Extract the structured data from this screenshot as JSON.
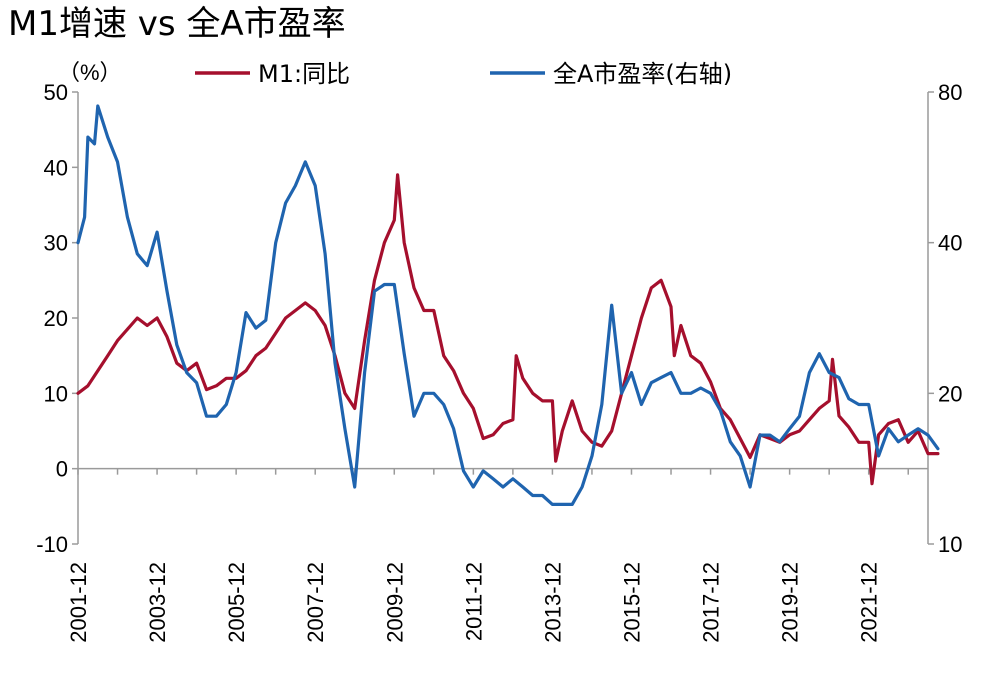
{
  "title": "M1增速 vs 全A市盈率",
  "chart_data": {
    "type": "line",
    "title": "M1增速 vs 全A市盈率",
    "ylabel_left": "（%）",
    "legend": [
      "M1:同比",
      "全A市盈率(右轴)"
    ],
    "legend_position": "top",
    "grid": false,
    "x_ticks": [
      "2001-12",
      "2003-12",
      "2005-12",
      "2007-12",
      "2009-12",
      "2011-12",
      "2013-12",
      "2015-12",
      "2017-12",
      "2019-12",
      "2021-12"
    ],
    "y_left_ticks": [
      "-10",
      "0",
      "10",
      "20",
      "30",
      "40",
      "50"
    ],
    "y_right_ticks": [
      "10",
      "20",
      "40",
      "80"
    ],
    "ylim_left": [
      -10,
      50
    ],
    "ylim_right": [
      10,
      80
    ],
    "y_right_scale": "log",
    "x_range": [
      "2001-12",
      "2023-06"
    ],
    "series": [
      {
        "name": "M1:同比",
        "axis": "left",
        "color": "#A50F2D",
        "points": [
          [
            "2001-12",
            10
          ],
          [
            "2002-03",
            11
          ],
          [
            "2002-06",
            13
          ],
          [
            "2002-09",
            15
          ],
          [
            "2002-12",
            17
          ],
          [
            "2003-03",
            18.5
          ],
          [
            "2003-06",
            20
          ],
          [
            "2003-09",
            19
          ],
          [
            "2003-12",
            20
          ],
          [
            "2004-03",
            17.5
          ],
          [
            "2004-06",
            14
          ],
          [
            "2004-09",
            13
          ],
          [
            "2004-12",
            14
          ],
          [
            "2005-03",
            10.5
          ],
          [
            "2005-06",
            11
          ],
          [
            "2005-09",
            12
          ],
          [
            "2005-12",
            12
          ],
          [
            "2006-03",
            13
          ],
          [
            "2006-06",
            15
          ],
          [
            "2006-09",
            16
          ],
          [
            "2006-12",
            18
          ],
          [
            "2007-03",
            20
          ],
          [
            "2007-06",
            21
          ],
          [
            "2007-09",
            22
          ],
          [
            "2007-12",
            21
          ],
          [
            "2008-03",
            19
          ],
          [
            "2008-06",
            15
          ],
          [
            "2008-09",
            10
          ],
          [
            "2008-12",
            8
          ],
          [
            "2009-03",
            17
          ],
          [
            "2009-06",
            25
          ],
          [
            "2009-09",
            30
          ],
          [
            "2009-12",
            33
          ],
          [
            "2010-01",
            39
          ],
          [
            "2010-03",
            30
          ],
          [
            "2010-06",
            24
          ],
          [
            "2010-09",
            21
          ],
          [
            "2010-12",
            21
          ],
          [
            "2011-03",
            15
          ],
          [
            "2011-06",
            13
          ],
          [
            "2011-09",
            10
          ],
          [
            "2011-12",
            8
          ],
          [
            "2012-03",
            4
          ],
          [
            "2012-06",
            4.5
          ],
          [
            "2012-09",
            6
          ],
          [
            "2012-12",
            6.5
          ],
          [
            "2013-01",
            15
          ],
          [
            "2013-03",
            12
          ],
          [
            "2013-06",
            10
          ],
          [
            "2013-09",
            9
          ],
          [
            "2013-12",
            9
          ],
          [
            "2014-01",
            1
          ],
          [
            "2014-03",
            5
          ],
          [
            "2014-06",
            9
          ],
          [
            "2014-09",
            5
          ],
          [
            "2014-12",
            3.5
          ],
          [
            "2015-03",
            3
          ],
          [
            "2015-06",
            5
          ],
          [
            "2015-09",
            10
          ],
          [
            "2015-12",
            15
          ],
          [
            "2016-03",
            20
          ],
          [
            "2016-06",
            24
          ],
          [
            "2016-09",
            25
          ],
          [
            "2016-12",
            21.5
          ],
          [
            "2017-01",
            15
          ],
          [
            "2017-03",
            19
          ],
          [
            "2017-06",
            15
          ],
          [
            "2017-09",
            14
          ],
          [
            "2017-12",
            11.5
          ],
          [
            "2018-03",
            8
          ],
          [
            "2018-06",
            6.5
          ],
          [
            "2018-09",
            4
          ],
          [
            "2018-12",
            1.5
          ],
          [
            "2019-03",
            4.5
          ],
          [
            "2019-06",
            4
          ],
          [
            "2019-09",
            3.5
          ],
          [
            "2019-12",
            4.5
          ],
          [
            "2020-03",
            5
          ],
          [
            "2020-06",
            6.5
          ],
          [
            "2020-09",
            8
          ],
          [
            "2020-12",
            9
          ],
          [
            "2021-01",
            14.5
          ],
          [
            "2021-03",
            7
          ],
          [
            "2021-06",
            5.5
          ],
          [
            "2021-09",
            3.5
          ],
          [
            "2021-12",
            3.5
          ],
          [
            "2022-01",
            -2
          ],
          [
            "2022-03",
            4.5
          ],
          [
            "2022-06",
            6
          ],
          [
            "2022-09",
            6.5
          ],
          [
            "2022-12",
            3.5
          ],
          [
            "2023-03",
            5
          ],
          [
            "2023-06",
            2
          ],
          [
            "2023-09",
            2
          ]
        ]
      },
      {
        "name": "全A市盈率(右轴)",
        "axis": "right",
        "color": "#1F64AF",
        "points": [
          [
            "2001-12",
            40
          ],
          [
            "2002-02",
            45
          ],
          [
            "2002-03",
            65
          ],
          [
            "2002-05",
            63
          ],
          [
            "2002-06",
            75
          ],
          [
            "2002-09",
            65
          ],
          [
            "2002-12",
            58
          ],
          [
            "2003-03",
            45
          ],
          [
            "2003-06",
            38
          ],
          [
            "2003-09",
            36
          ],
          [
            "2003-12",
            42
          ],
          [
            "2004-03",
            32
          ],
          [
            "2004-06",
            25
          ],
          [
            "2004-09",
            22
          ],
          [
            "2004-12",
            21
          ],
          [
            "2005-03",
            18
          ],
          [
            "2005-06",
            18
          ],
          [
            "2005-09",
            19
          ],
          [
            "2005-12",
            22
          ],
          [
            "2006-03",
            29
          ],
          [
            "2006-06",
            27
          ],
          [
            "2006-09",
            28
          ],
          [
            "2006-12",
            40
          ],
          [
            "2007-03",
            48
          ],
          [
            "2007-06",
            52
          ],
          [
            "2007-09",
            58
          ],
          [
            "2007-12",
            52
          ],
          [
            "2008-03",
            38
          ],
          [
            "2008-06",
            23
          ],
          [
            "2008-09",
            17
          ],
          [
            "2008-12",
            13
          ],
          [
            "2009-03",
            22
          ],
          [
            "2009-06",
            32
          ],
          [
            "2009-09",
            33
          ],
          [
            "2009-12",
            33
          ],
          [
            "2010-03",
            24
          ],
          [
            "2010-06",
            18
          ],
          [
            "2010-09",
            20
          ],
          [
            "2010-12",
            20
          ],
          [
            "2011-03",
            19
          ],
          [
            "2011-06",
            17
          ],
          [
            "2011-09",
            14
          ],
          [
            "2011-12",
            13
          ],
          [
            "2012-03",
            14
          ],
          [
            "2012-06",
            13.5
          ],
          [
            "2012-09",
            13
          ],
          [
            "2012-12",
            13.5
          ],
          [
            "2013-03",
            13
          ],
          [
            "2013-06",
            12.5
          ],
          [
            "2013-09",
            12.5
          ],
          [
            "2013-12",
            12
          ],
          [
            "2014-03",
            12
          ],
          [
            "2014-06",
            12
          ],
          [
            "2014-09",
            13
          ],
          [
            "2014-12",
            15
          ],
          [
            "2015-03",
            19
          ],
          [
            "2015-06",
            30
          ],
          [
            "2015-09",
            20
          ],
          [
            "2015-12",
            22
          ],
          [
            "2016-03",
            19
          ],
          [
            "2016-06",
            21
          ],
          [
            "2016-09",
            21.5
          ],
          [
            "2016-12",
            22
          ],
          [
            "2017-03",
            20
          ],
          [
            "2017-06",
            20
          ],
          [
            "2017-09",
            20.5
          ],
          [
            "2017-12",
            20
          ],
          [
            "2018-03",
            18.5
          ],
          [
            "2018-06",
            16
          ],
          [
            "2018-09",
            15
          ],
          [
            "2018-12",
            13
          ],
          [
            "2019-03",
            16.5
          ],
          [
            "2019-06",
            16.5
          ],
          [
            "2019-09",
            16
          ],
          [
            "2019-12",
            17
          ],
          [
            "2020-03",
            18
          ],
          [
            "2020-06",
            22
          ],
          [
            "2020-09",
            24
          ],
          [
            "2020-12",
            22
          ],
          [
            "2021-03",
            21.5
          ],
          [
            "2021-06",
            19.5
          ],
          [
            "2021-09",
            19
          ],
          [
            "2021-12",
            19
          ],
          [
            "2022-03",
            15
          ],
          [
            "2022-06",
            17
          ],
          [
            "2022-09",
            16
          ],
          [
            "2022-12",
            16.5
          ],
          [
            "2023-03",
            17
          ],
          [
            "2023-06",
            16.5
          ],
          [
            "2023-09",
            15.5
          ]
        ]
      }
    ]
  }
}
